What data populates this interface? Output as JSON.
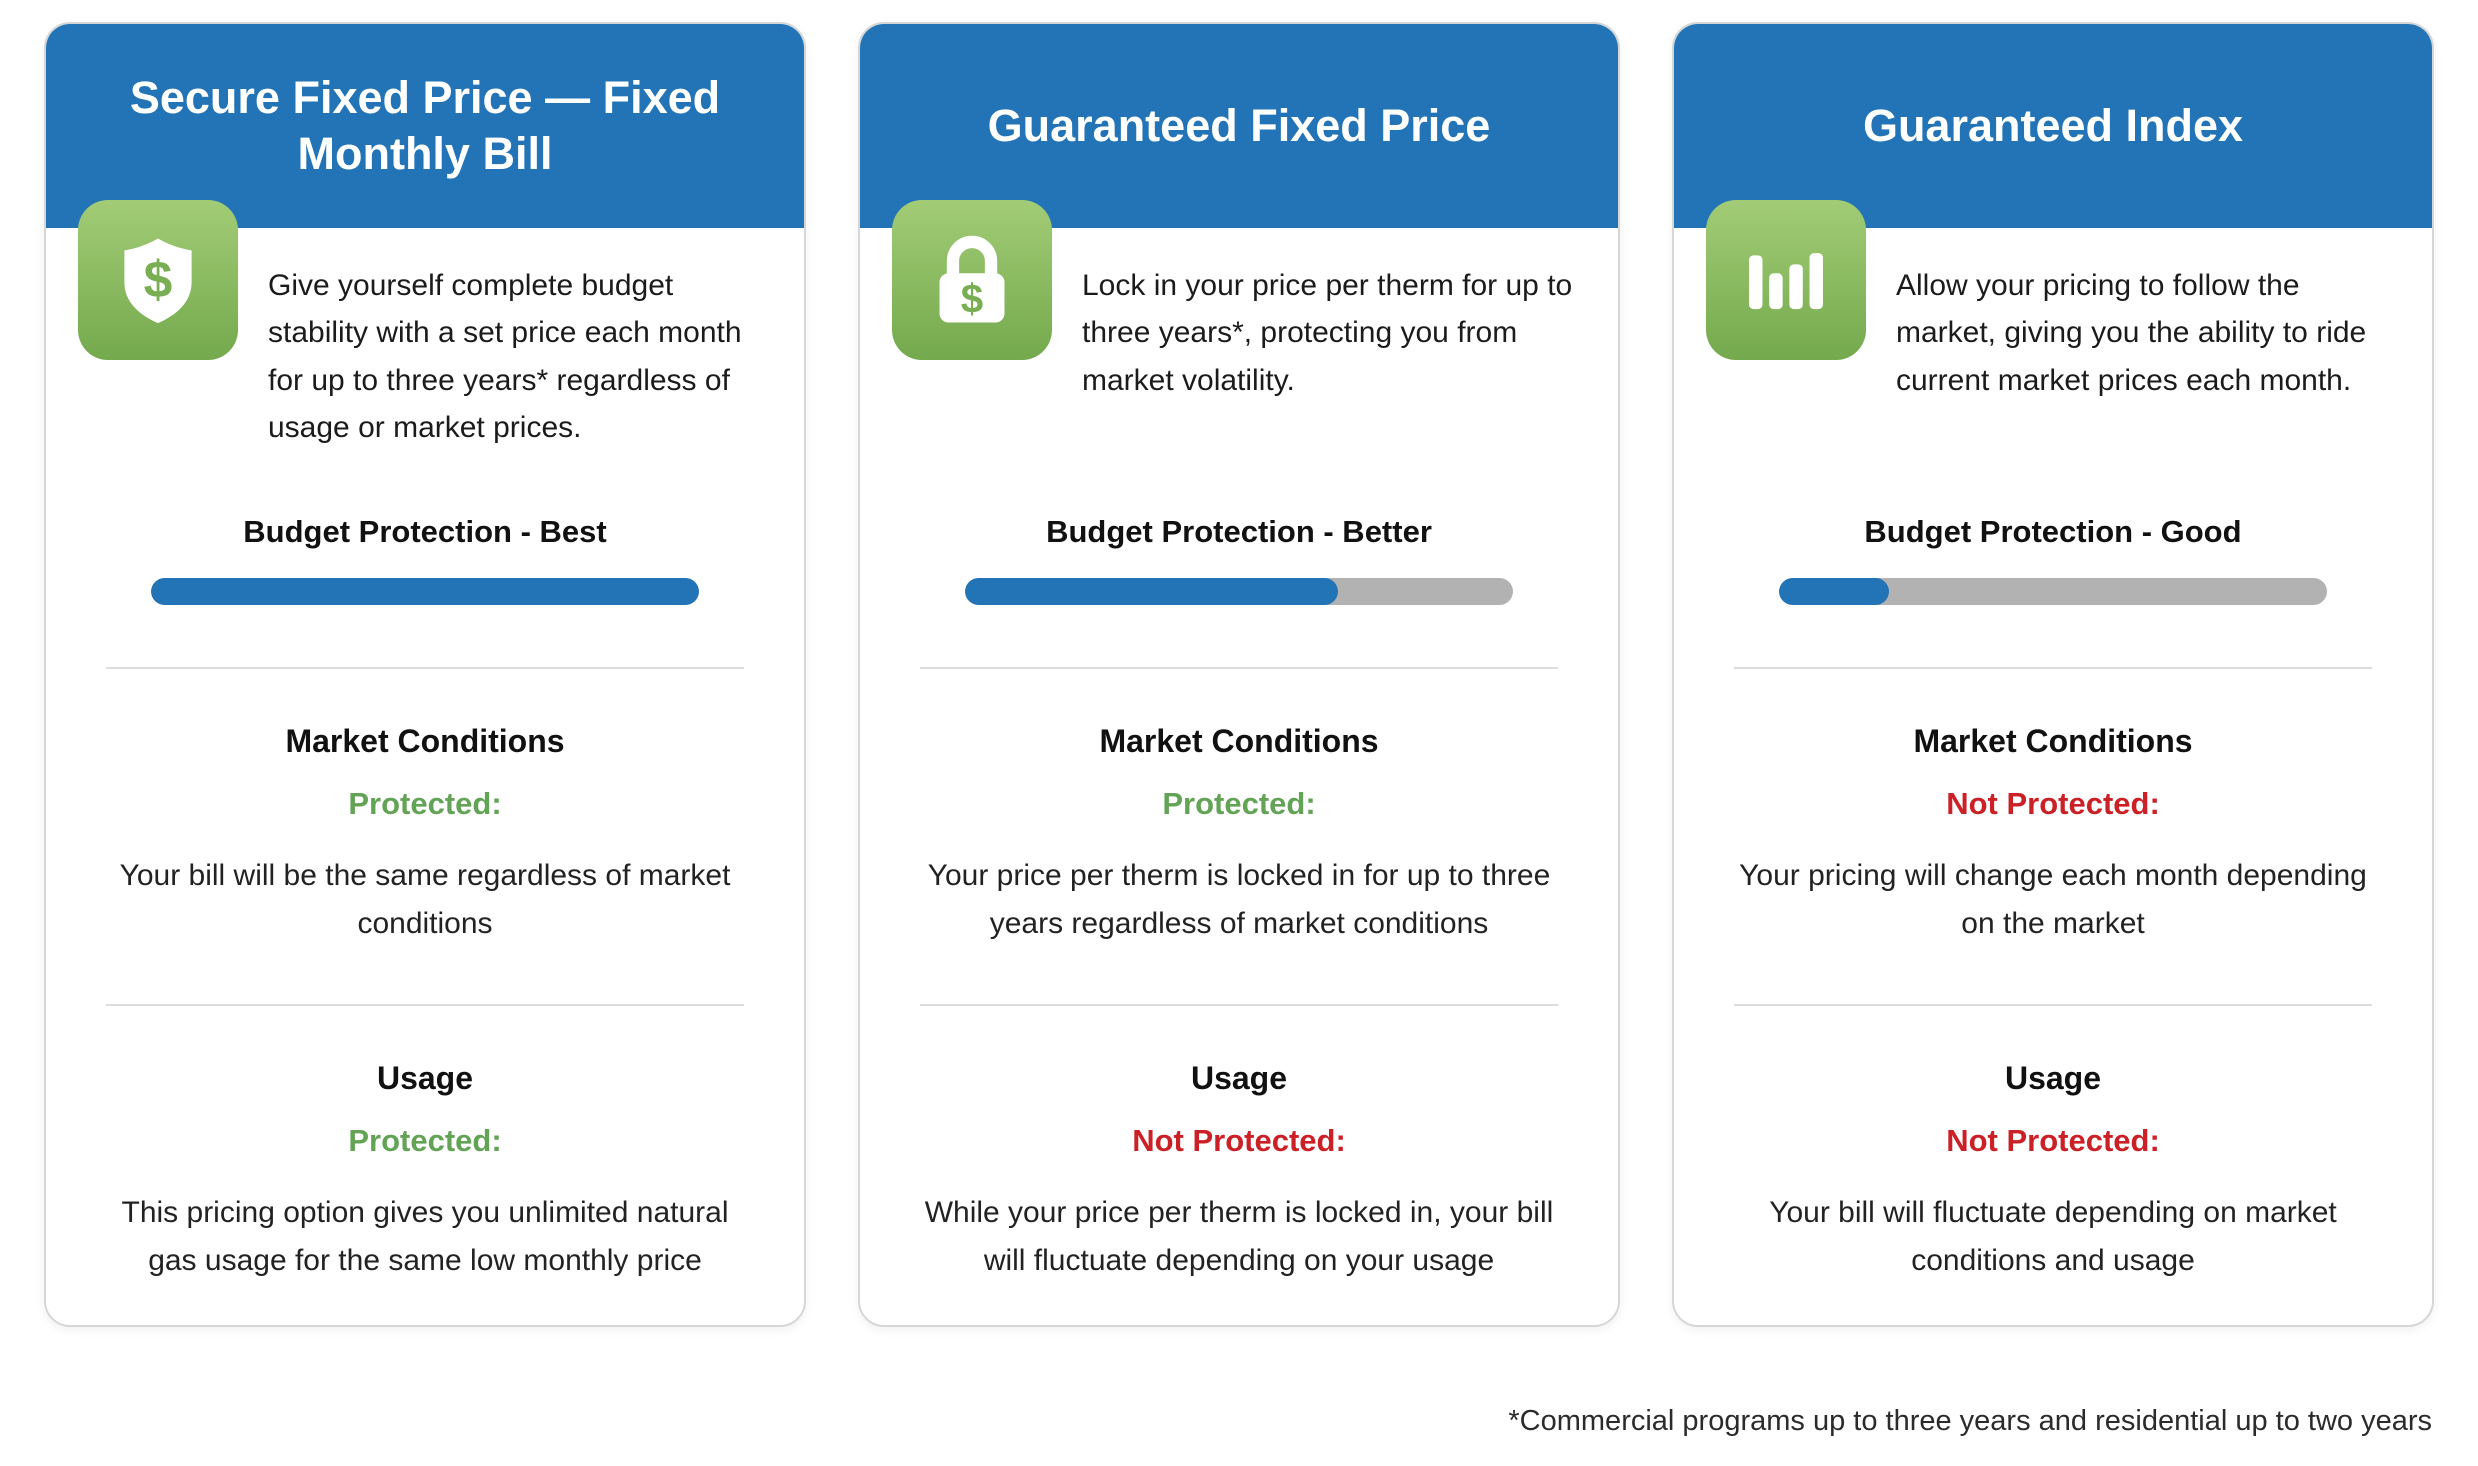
{
  "colors": {
    "header_blue": "#2274b6",
    "progress_blue": "#2274b6",
    "track_gray": "#b2b2b2",
    "protected_green": "#63a356",
    "not_protected_red": "#cc2027",
    "icon_tile_green": "#8bbc63"
  },
  "cards": [
    {
      "title": "Secure Fixed Price — Fixed Monthly Bill",
      "icon": "shield-dollar-icon",
      "description": "Give yourself complete budget stability with a set price each month for up to three years* regardless of usage or market prices.",
      "protection_label": "Budget Protection - Best",
      "protection_percent": 100,
      "sections": [
        {
          "heading": "Market Conditions",
          "status": "Protected:",
          "status_type": "protected",
          "text": "Your bill will be the same regardless of market conditions"
        },
        {
          "heading": "Usage",
          "status": "Protected:",
          "status_type": "protected",
          "text": "This pricing option gives you unlimited natural gas usage for the same low monthly price"
        }
      ]
    },
    {
      "title": "Guaranteed Fixed Price",
      "icon": "lock-dollar-icon",
      "description": "Lock in your price per therm for up to three years*, protecting you from market volatility.",
      "protection_label": "Budget Protection - Better",
      "protection_percent": 68,
      "sections": [
        {
          "heading": "Market Conditions",
          "status": "Protected:",
          "status_type": "protected",
          "text": "Your price per therm is locked in for up to three years regardless of market conditions"
        },
        {
          "heading": "Usage",
          "status": "Not Protected:",
          "status_type": "not-protected",
          "text": "While your price per therm is locked in, your bill will fluctuate depending on your usage"
        }
      ]
    },
    {
      "title": "Guaranteed Index",
      "icon": "bar-chart-icon",
      "description": "Allow your pricing to follow the market, giving you the ability to ride current market prices each month.",
      "protection_label": "Budget Protection - Good",
      "protection_percent": 20,
      "sections": [
        {
          "heading": "Market Conditions",
          "status": "Not Protected:",
          "status_type": "not-protected",
          "text": "Your pricing will change each month depending on the market"
        },
        {
          "heading": "Usage",
          "status": "Not Protected:",
          "status_type": "not-protected",
          "text": "Your bill will fluctuate depending on market conditions and usage"
        }
      ]
    }
  ],
  "footnote": "*Commercial programs up to three years and residential up to two years"
}
